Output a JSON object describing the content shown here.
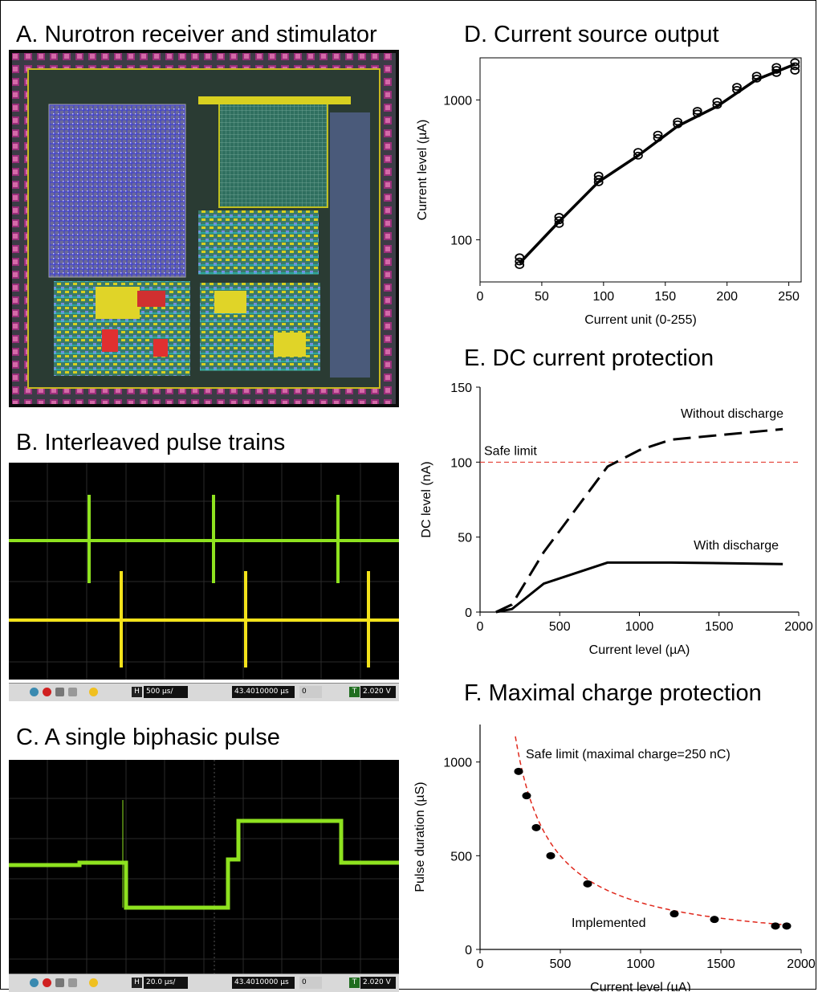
{
  "panels": {
    "a_title": "A. Nurotron receiver and stimulator",
    "b_title": "B. Interleaved pulse trains",
    "c_title": "C. A single biphasic pulse",
    "d_title": "D. Current source output",
    "e_title": "E. DC current protection",
    "f_title": "F. Maximal charge protection"
  },
  "colors": {
    "scope_bg": "#000000",
    "trace_green": "#8ee21f",
    "trace_yellow": "#f3e21a",
    "safe_limit": "#e0281c",
    "toolbar_bg": "#d9d9d9"
  },
  "scope_b_toolbar": {
    "timebase": "500 µs/",
    "trigger_time": "43.4010000 µs",
    "trigger_level": "2.020 V",
    "h_label": "H",
    "t_label": "T",
    "pos": "0"
  },
  "scope_c_toolbar": {
    "timebase": "20.0 µs/",
    "trigger_time": "43.4010000 µs",
    "trigger_level": "2.020 V",
    "h_label": "H",
    "t_label": "T",
    "pos": "0"
  },
  "chart_data": [
    {
      "id": "D",
      "type": "scatter",
      "title": "D. Current source output",
      "xlabel": "Current unit (0-255)",
      "ylabel": "Current level (µA)",
      "xlim": [
        0,
        260
      ],
      "ylim": [
        50,
        2000
      ],
      "y_scale": "log",
      "xticks": [
        0,
        50,
        100,
        150,
        200,
        250
      ],
      "yticks": [
        100,
        1000
      ],
      "series": [
        {
          "style": "open-circles",
          "x": [
            32,
            32,
            32,
            64,
            64,
            64,
            96,
            96,
            96,
            128,
            128,
            144,
            144,
            160,
            160,
            176,
            176,
            192,
            192,
            208,
            208,
            224,
            224,
            240,
            240,
            240,
            255,
            255,
            255
          ],
          "y": [
            66,
            70,
            75,
            130,
            138,
            146,
            258,
            272,
            288,
            400,
            425,
            535,
            565,
            670,
            700,
            800,
            835,
            920,
            975,
            1180,
            1240,
            1420,
            1490,
            1560,
            1640,
            1720,
            1620,
            1740,
            1860
          ]
        },
        {
          "style": "solid-line",
          "x": [
            32,
            64,
            96,
            128,
            160,
            192,
            224,
            255
          ],
          "y": [
            68,
            135,
            260,
            400,
            650,
            900,
            1400,
            1800
          ]
        }
      ]
    },
    {
      "id": "E",
      "type": "line",
      "title": "E. DC current protection",
      "xlabel": "Current level (µA)",
      "ylabel": "DC level (nA)",
      "xlim": [
        0,
        2000
      ],
      "ylim": [
        0,
        150
      ],
      "xticks": [
        0,
        500,
        1000,
        1500,
        2000
      ],
      "yticks": [
        0,
        50,
        100,
        150
      ],
      "safe_limit": {
        "label": "Safe limit",
        "y": 100
      },
      "series": [
        {
          "name": "Without discharge",
          "style": "dashed",
          "x": [
            100,
            200,
            400,
            800,
            1000,
            1200,
            1600,
            1900
          ],
          "y": [
            0,
            5,
            40,
            97,
            108,
            115,
            119,
            122
          ]
        },
        {
          "name": "With discharge",
          "style": "solid",
          "x": [
            100,
            200,
            400,
            800,
            1000,
            1200,
            1600,
            1900
          ],
          "y": [
            0,
            2,
            19,
            33,
            33,
            33,
            32.5,
            32
          ]
        }
      ]
    },
    {
      "id": "F",
      "type": "scatter",
      "title": "F. Maximal charge protection",
      "xlabel": "Current level (µA)",
      "ylabel": "Pulse duration (µS)",
      "xlim": [
        0,
        2000
      ],
      "ylim": [
        0,
        1200
      ],
      "xticks": [
        0,
        500,
        1000,
        1500,
        2000
      ],
      "yticks": [
        0,
        500,
        1000
      ],
      "safe_limit": {
        "label": "Safe limit (maximal charge=250 nC)",
        "charge_nC": 250
      },
      "series": [
        {
          "name": "Implemented",
          "style": "filled-circles",
          "x": [
            240,
            290,
            350,
            440,
            670,
            1210,
            1460,
            1840,
            1910
          ],
          "y": [
            950,
            820,
            650,
            500,
            350,
            190,
            160,
            125,
            125
          ]
        }
      ]
    }
  ]
}
